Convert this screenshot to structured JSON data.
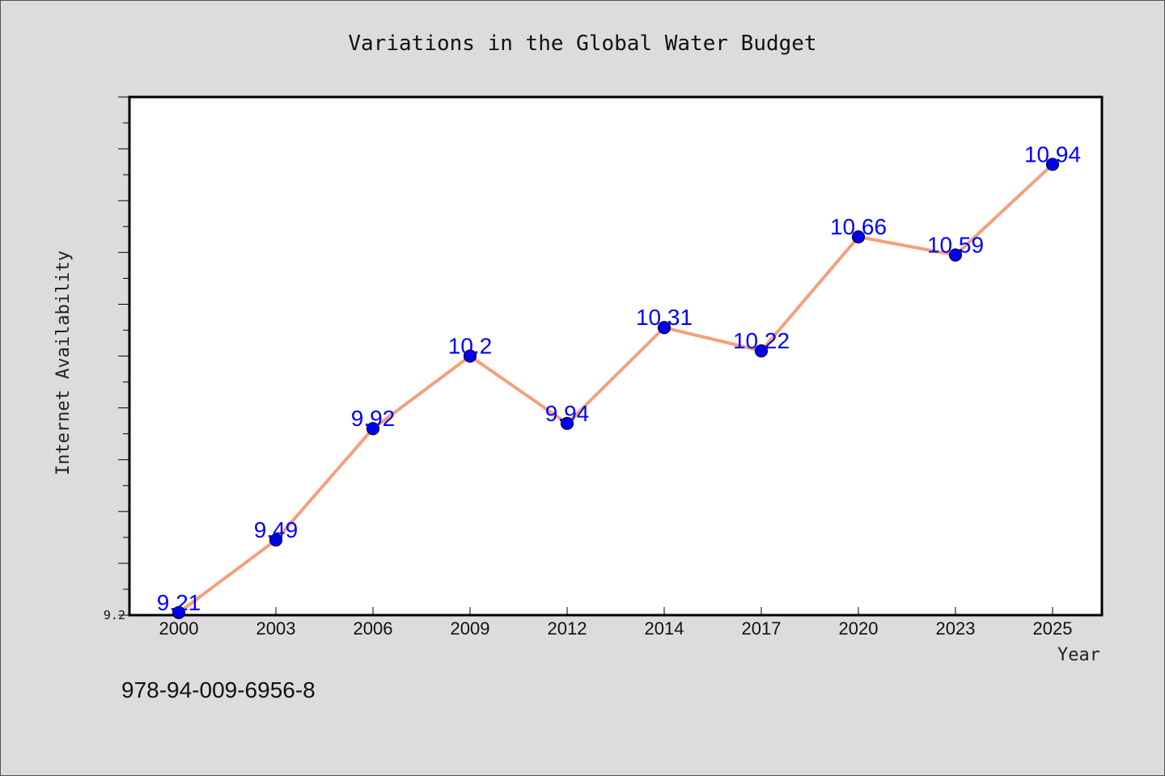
{
  "chart_data": {
    "type": "line",
    "title": "Variations in the Global Water Budget",
    "xlabel": "Year",
    "ylabel": "Internet Availability",
    "categories": [
      "2000",
      "2003",
      "2006",
      "2009",
      "2012",
      "2014",
      "2017",
      "2020",
      "2023",
      "2025"
    ],
    "series": [
      {
        "values": [
          9.21,
          9.49,
          9.92,
          10.2,
          9.94,
          10.31,
          10.22,
          10.66,
          10.59,
          10.94
        ],
        "data_labels": [
          "9.21",
          "9.49",
          "9.92",
          "10.2",
          "9.94",
          "10.31",
          "10.22",
          "10.66",
          "10.59",
          "10.94"
        ]
      }
    ],
    "ylim": [
      9.2,
      11.2
    ],
    "y_tick_labels": [
      "9.2"
    ],
    "grid": false,
    "colors": {
      "line": "#f4a07c",
      "marker": "#0000ee",
      "data_label": "#0000ff",
      "plot_bg": "#ffffff",
      "page_bg": "#dcdcdc"
    }
  },
  "annotation": {
    "text": "978-94-009-6956-8"
  }
}
